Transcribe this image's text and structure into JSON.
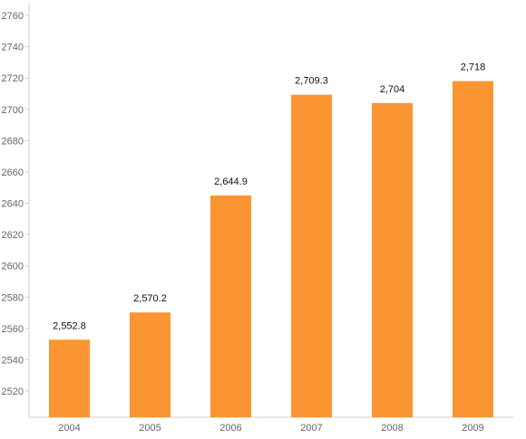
{
  "chart_data": {
    "type": "bar",
    "categories": [
      "2004",
      "2005",
      "2006",
      "2007",
      "2008",
      "2009"
    ],
    "values": [
      2552.8,
      2570.2,
      2644.9,
      2709.3,
      2704,
      2718
    ],
    "data_labels": [
      "2,552.8",
      "2,570.2",
      "2,644.9",
      "2,709.3",
      "2,704",
      "2,718"
    ],
    "yticks": [
      2520,
      2540,
      2560,
      2580,
      2600,
      2620,
      2640,
      2660,
      2680,
      2700,
      2720,
      2740,
      2760
    ],
    "ylim": [
      2505,
      2768
    ],
    "title": "",
    "xlabel": "",
    "ylabel": "",
    "grid": false,
    "legend": "none",
    "colors": {
      "bar": "#fa9532",
      "axis": "#cccccc",
      "tick_text": "#666666",
      "label_text": "#111111"
    }
  }
}
